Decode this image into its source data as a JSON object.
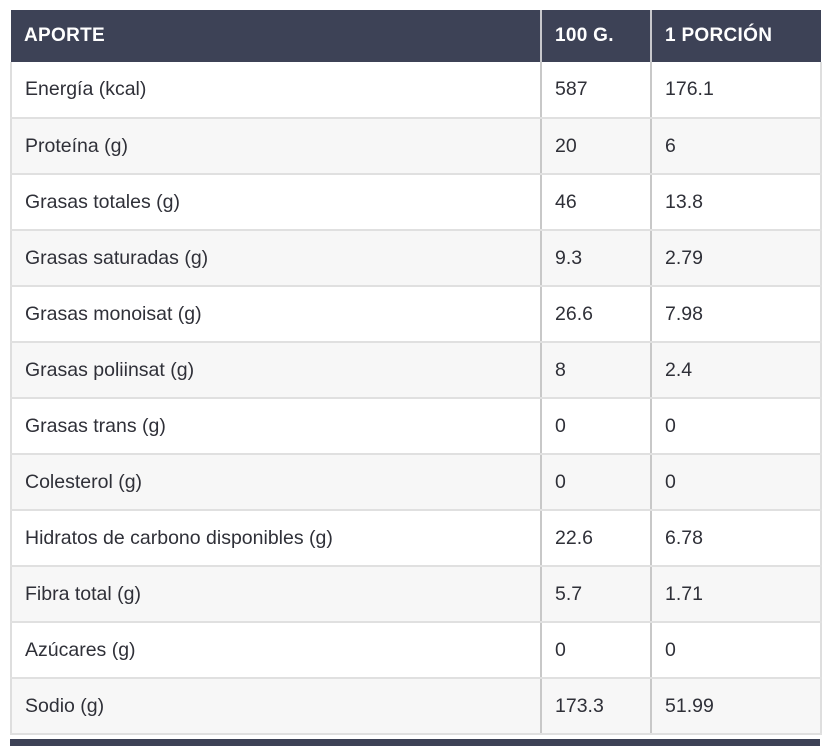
{
  "chart_data": {
    "type": "table",
    "columns": [
      "APORTE",
      "100 G.",
      "1 PORCIÓN"
    ],
    "rows": [
      {
        "label": "Energía (kcal)",
        "per_100g": "587",
        "per_portion": "176.1"
      },
      {
        "label": "Proteína (g)",
        "per_100g": "20",
        "per_portion": "6"
      },
      {
        "label": "Grasas totales (g)",
        "per_100g": "46",
        "per_portion": "13.8"
      },
      {
        "label": "Grasas saturadas (g)",
        "per_100g": "9.3",
        "per_portion": "2.79"
      },
      {
        "label": "Grasas monoisat (g)",
        "per_100g": "26.6",
        "per_portion": "7.98"
      },
      {
        "label": "Grasas poliinsat (g)",
        "per_100g": "8",
        "per_portion": "2.4"
      },
      {
        "label": "Grasas trans (g)",
        "per_100g": "0",
        "per_portion": "0"
      },
      {
        "label": "Colesterol (g)",
        "per_100g": "0",
        "per_portion": "0"
      },
      {
        "label": "Hidratos de carbono disponibles (g)",
        "per_100g": "22.6",
        "per_portion": "6.78"
      },
      {
        "label": "Fibra total (g)",
        "per_100g": "5.7",
        "per_portion": "1.71"
      },
      {
        "label": "Azúcares (g)",
        "per_100g": "0",
        "per_portion": "0"
      },
      {
        "label": "Sodio (g)",
        "per_100g": "173.3",
        "per_portion": "51.99"
      }
    ],
    "layout": {
      "legend": "none",
      "grid": "on",
      "zebra_striping": true
    },
    "colors": {
      "header_bg": "#3d4256",
      "header_text": "#ffffff",
      "row_odd_bg": "#ffffff",
      "row_even_bg": "#f7f7f7",
      "row_border": "#e0e0e0",
      "column_divider": "#c8c8c8",
      "body_text": "#2f3038"
    }
  }
}
